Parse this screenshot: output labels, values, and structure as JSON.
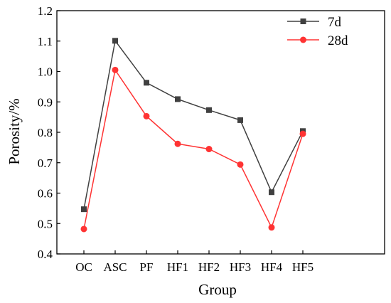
{
  "chart_data": {
    "type": "line",
    "xlabel": "Group",
    "ylabel": "Porosity/%",
    "categories": [
      "OC",
      "ASC",
      "PF",
      "HF1",
      "HF2",
      "HF3",
      "HF4",
      "HF5"
    ],
    "ylim": [
      0.4,
      1.2
    ],
    "yticks": [
      "0.4",
      "0.5",
      "0.6",
      "0.7",
      "0.8",
      "0.9",
      "1.0",
      "1.1",
      "1.2"
    ],
    "grid": false,
    "legend_position": "top-right",
    "series": [
      {
        "name": "7d",
        "color": "#404040",
        "marker": "square",
        "values": [
          0.547,
          1.101,
          0.963,
          0.909,
          0.873,
          0.84,
          0.603,
          0.804
        ]
      },
      {
        "name": "28d",
        "color": "#ff3333",
        "marker": "circle",
        "values": [
          0.482,
          1.005,
          0.853,
          0.762,
          0.745,
          0.694,
          0.487,
          0.795
        ]
      }
    ]
  }
}
